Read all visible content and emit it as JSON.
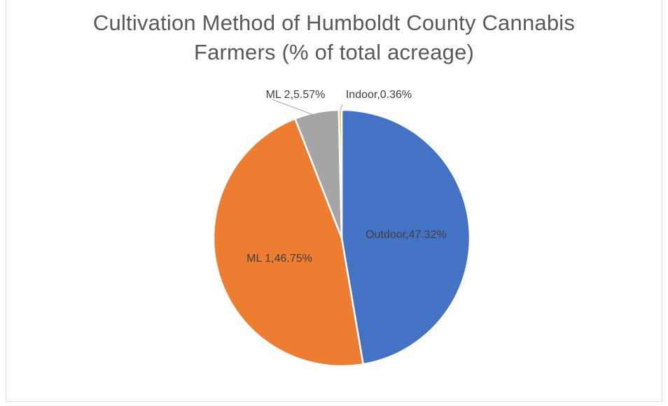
{
  "chart_data": {
    "type": "pie",
    "title_lines": [
      "Cultivation Method of Humboldt County Cannabis",
      "Farmers (% of total acreage)"
    ],
    "slices": [
      {
        "name": "Outdoor",
        "value": 47.32,
        "label": "Outdoor,47.32%",
        "color": "#4472c4"
      },
      {
        "name": "ML 1",
        "value": 46.75,
        "label": "ML 1,46.75%",
        "color": "#ed7d31"
      },
      {
        "name": "ML 2",
        "value": 5.57,
        "label": "ML 2,5.57%",
        "color": "#a5a5a5"
      },
      {
        "name": "Indoor",
        "value": 0.36,
        "label": "Indoor,0.36%",
        "color": "#ffc000"
      }
    ],
    "legend": false,
    "start": "12 o'clock, clockwise"
  }
}
